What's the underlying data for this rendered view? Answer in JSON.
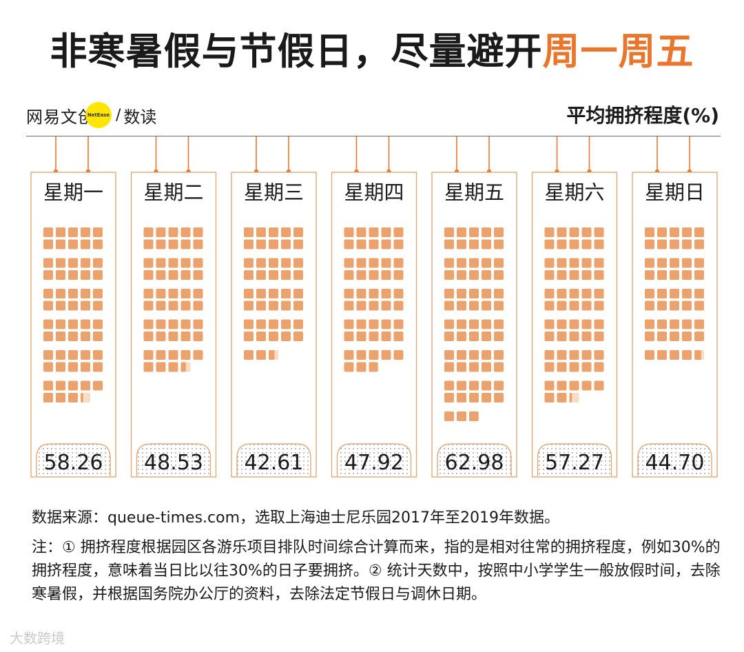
{
  "title": {
    "main": "非寒暑假与节假日，尽量避开",
    "highlight": "周一周五"
  },
  "brand": {
    "name": "网易文创",
    "badge": "NetEase",
    "slash": "/",
    "sub": "数读"
  },
  "metric_label": "平均拥挤程度(%)",
  "colors": {
    "accent": "#e8762c",
    "square": "#eba26d",
    "square_light": "#f9dcc4",
    "card_border": "#e0a16d"
  },
  "chart_data": {
    "type": "pictogram-bar",
    "title": "非寒暑假与节假日，尽量避开周一周五",
    "ylabel": "平均拥挤程度(%)",
    "unit_per_square": 1,
    "categories": [
      "星期一",
      "星期二",
      "星期三",
      "星期四",
      "星期五",
      "星期六",
      "星期日"
    ],
    "values": [
      58.26,
      48.53,
      42.61,
      47.92,
      62.98,
      57.27,
      44.7
    ],
    "value_labels": [
      "58.26",
      "48.53",
      "42.61",
      "47.92",
      "62.98",
      "57.27",
      "44.70"
    ]
  },
  "source": "数据来源：queue-times.com，选取上海迪士尼乐园2017年至2019年数据。",
  "note": "注：① 拥挤程度根据园区各游乐项目排队时间综合计算而来，指的是相对往常的拥挤程度，例如30%的拥挤程度，意味着当日比以往30%的日子要拥挤。② 统计天数中，按照中小学学生一般放假时间，去除寒暑假，并根据国务院办公厅的资料，去除法定节假日与调休日期。",
  "watermark": "大数跨境"
}
